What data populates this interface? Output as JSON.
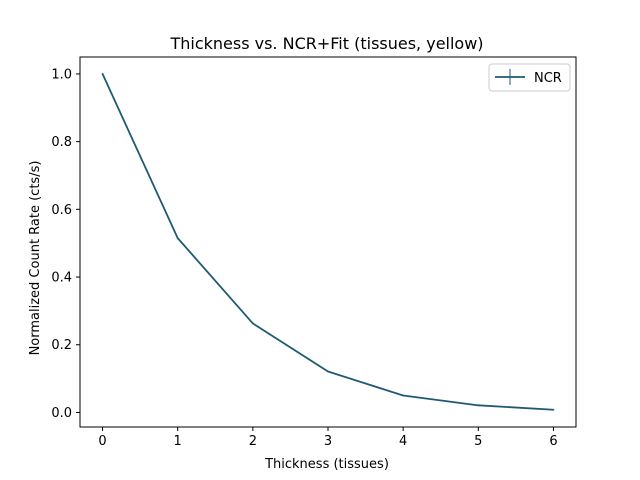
{
  "chart_data": {
    "type": "line",
    "title": "Thickness vs. NCR+Fit (tissues, yellow)",
    "xlabel": "Thickness (tissues)",
    "ylabel": "Normalized Count Rate (cts/s)",
    "xlim": [
      -0.3,
      6.3
    ],
    "ylim": [
      -0.043,
      1.05
    ],
    "xticks": [
      0,
      1,
      2,
      3,
      4,
      5,
      6
    ],
    "xtick_labels": [
      "0",
      "1",
      "2",
      "3",
      "4",
      "5",
      "6"
    ],
    "yticks": [
      0.0,
      0.2,
      0.4,
      0.6,
      0.8,
      1.0
    ],
    "ytick_labels": [
      "0.0",
      "0.2",
      "0.4",
      "0.6",
      "0.8",
      "1.0"
    ],
    "grid": false,
    "legend_position": "top-right",
    "series": [
      {
        "name": "NCR",
        "color": "#1f5a73",
        "marker": "errorbar-line",
        "x": [
          0,
          1,
          2,
          3,
          4,
          5,
          6
        ],
        "y": [
          1.0,
          0.515,
          0.263,
          0.121,
          0.05,
          0.021,
          0.008
        ]
      }
    ]
  }
}
